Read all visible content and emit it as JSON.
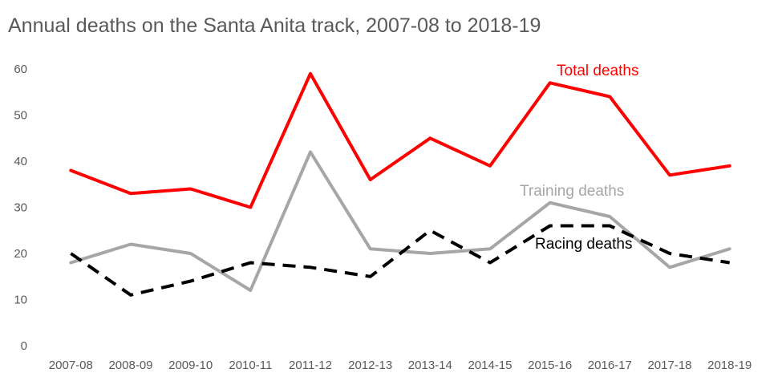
{
  "chart_data": {
    "type": "line",
    "title": "Annual deaths on the Santa Anita track, 2007-08 to 2018-19",
    "xlabel": "",
    "ylabel": "",
    "ylim": [
      0,
      60
    ],
    "yticks": [
      0,
      10,
      20,
      30,
      40,
      50,
      60
    ],
    "grid": false,
    "legend": "none (direct labels)",
    "categories": [
      "2007-08",
      "2008-09",
      "2009-10",
      "2010-11",
      "2011-12",
      "2012-13",
      "2013-14",
      "2014-15",
      "2015-16",
      "2016-17",
      "2017-18",
      "2018-19"
    ],
    "series": [
      {
        "name": "Total deaths",
        "color": "#ff0000",
        "style": "solid",
        "values": [
          38,
          33,
          34,
          30,
          59,
          36,
          45,
          39,
          57,
          54,
          37,
          39
        ]
      },
      {
        "name": "Training deaths",
        "color": "#a6a6a6",
        "style": "solid",
        "values": [
          18,
          22,
          20,
          12,
          42,
          21,
          20,
          21,
          31,
          28,
          17,
          21
        ]
      },
      {
        "name": "Racing deaths",
        "color": "#000000",
        "style": "dashed",
        "values": [
          20,
          11,
          14,
          18,
          17,
          15,
          25,
          18,
          26,
          26,
          20,
          18
        ]
      }
    ]
  }
}
